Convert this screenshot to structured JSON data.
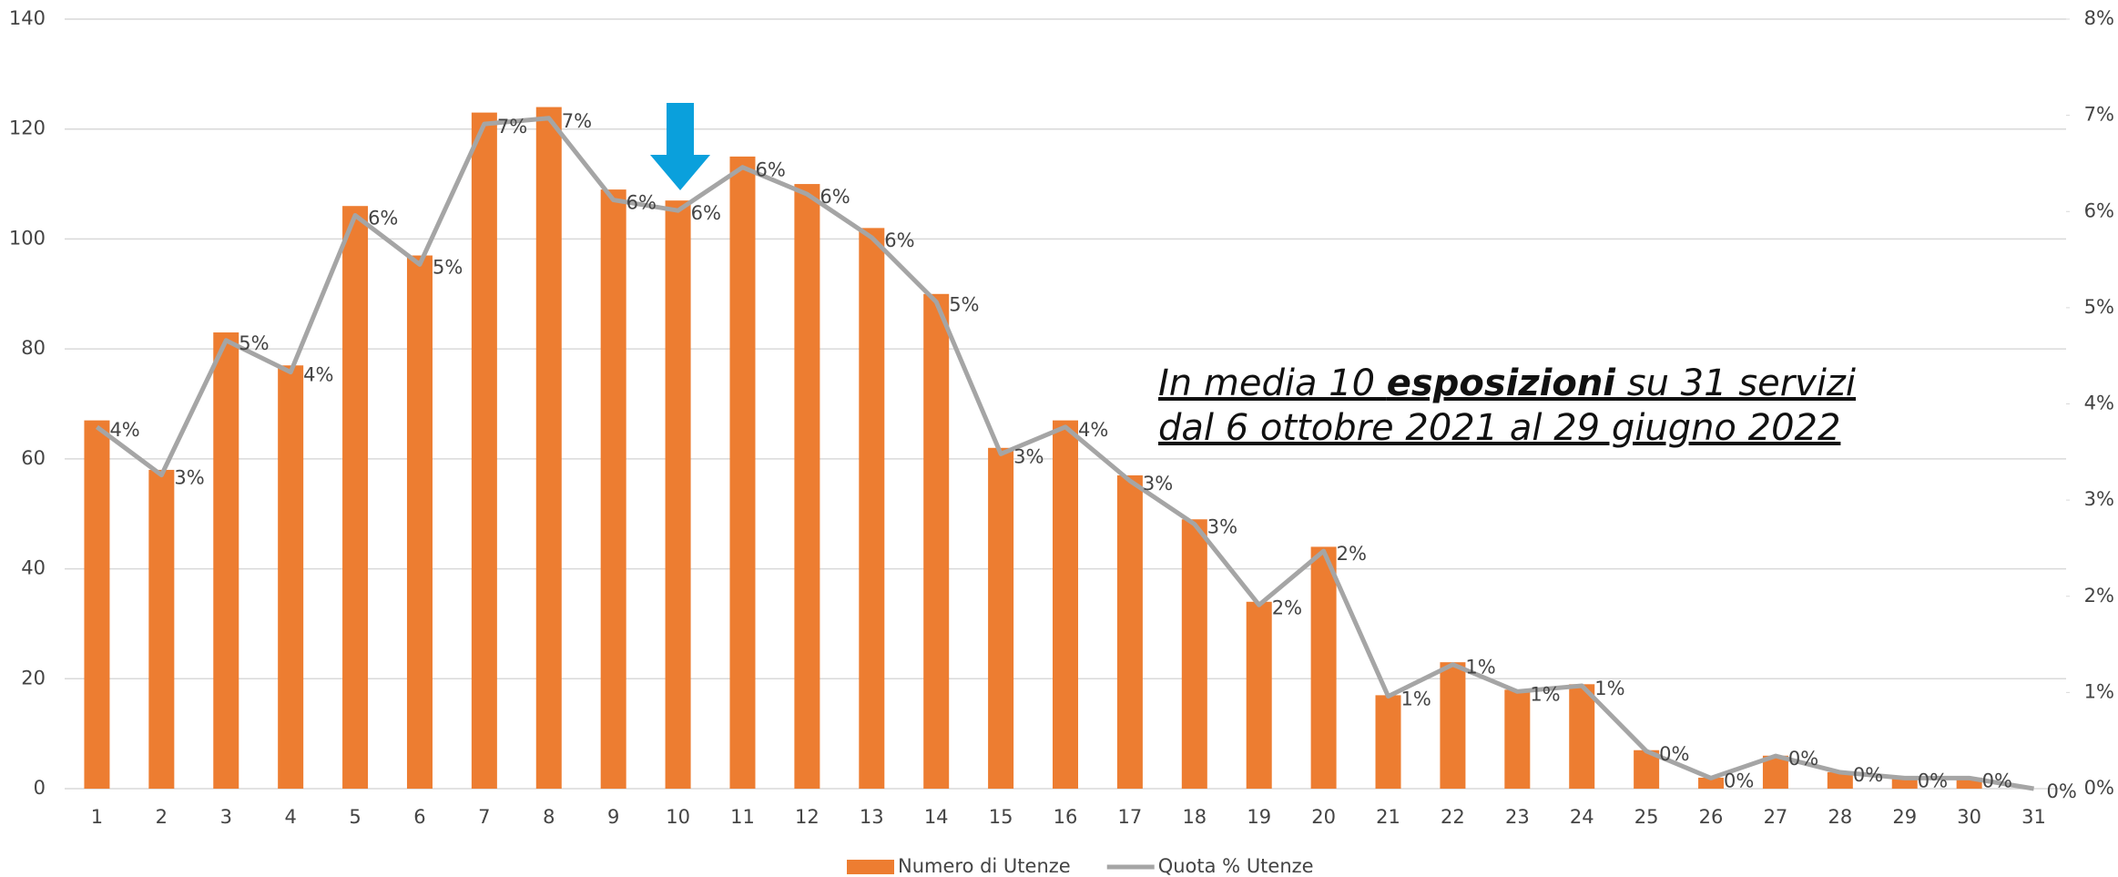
{
  "chart_data": {
    "type": "bar_line",
    "categories": [
      "1",
      "2",
      "3",
      "4",
      "5",
      "6",
      "7",
      "8",
      "9",
      "10",
      "11",
      "12",
      "13",
      "14",
      "15",
      "16",
      "17",
      "18",
      "19",
      "20",
      "21",
      "22",
      "23",
      "24",
      "25",
      "26",
      "27",
      "28",
      "29",
      "30",
      "31"
    ],
    "series": [
      {
        "name": "Numero di Utenze",
        "type": "bar",
        "color": "#ed7d31",
        "values": [
          67,
          58,
          83,
          77,
          106,
          97,
          123,
          124,
          109,
          107,
          115,
          110,
          102,
          90,
          62,
          67,
          57,
          49,
          34,
          44,
          17,
          23,
          18,
          19,
          7,
          2,
          6,
          3,
          2,
          2,
          0
        ]
      },
      {
        "name": "Quota % Utenze",
        "type": "line",
        "axis": "y2",
        "color": "#a5a5a5",
        "values": [
          3.76,
          3.26,
          4.66,
          4.33,
          5.96,
          5.45,
          6.91,
          6.97,
          6.12,
          6.01,
          6.46,
          6.18,
          5.73,
          5.06,
          3.48,
          3.76,
          3.2,
          2.75,
          1.91,
          2.47,
          0.96,
          1.29,
          1.01,
          1.07,
          0.39,
          0.11,
          0.34,
          0.17,
          0.11,
          0.11,
          0
        ],
        "value_labels": [
          "4%",
          "3%",
          "5%",
          "4%",
          "6%",
          "5%",
          "7%",
          "7%",
          "6%",
          "6%",
          "6%",
          "6%",
          "6%",
          "5%",
          "3%",
          "4%",
          "3%",
          "3%",
          "2%",
          "2%",
          "1%",
          "1%",
          "1%",
          "1%",
          "0%",
          "0%",
          "0%",
          "0%",
          "0%",
          "0%",
          "0%"
        ]
      }
    ],
    "ylim": [
      0,
      140
    ],
    "yticks": [
      0,
      20,
      40,
      60,
      80,
      100,
      120,
      140
    ],
    "y2lim": [
      0,
      8
    ],
    "y2ticks": [
      {
        "value": 0,
        "label": "0%"
      },
      {
        "value": 1,
        "label": "1%"
      },
      {
        "value": 2,
        "label": "2%"
      },
      {
        "value": 3,
        "label": "3%"
      },
      {
        "value": 4,
        "label": "4%"
      },
      {
        "value": 5,
        "label": "5%"
      },
      {
        "value": 6,
        "label": "6%"
      },
      {
        "value": 7,
        "label": "7%"
      },
      {
        "value": 8,
        "label": "8%"
      }
    ],
    "grid": true,
    "legend": "bottom",
    "annotation": {
      "line1": [
        "In media 10 ",
        "esposizioni",
        " su 31 servizi"
      ],
      "line2": "dal 6 ottobre 2021 al 29 giugno 2022"
    }
  }
}
